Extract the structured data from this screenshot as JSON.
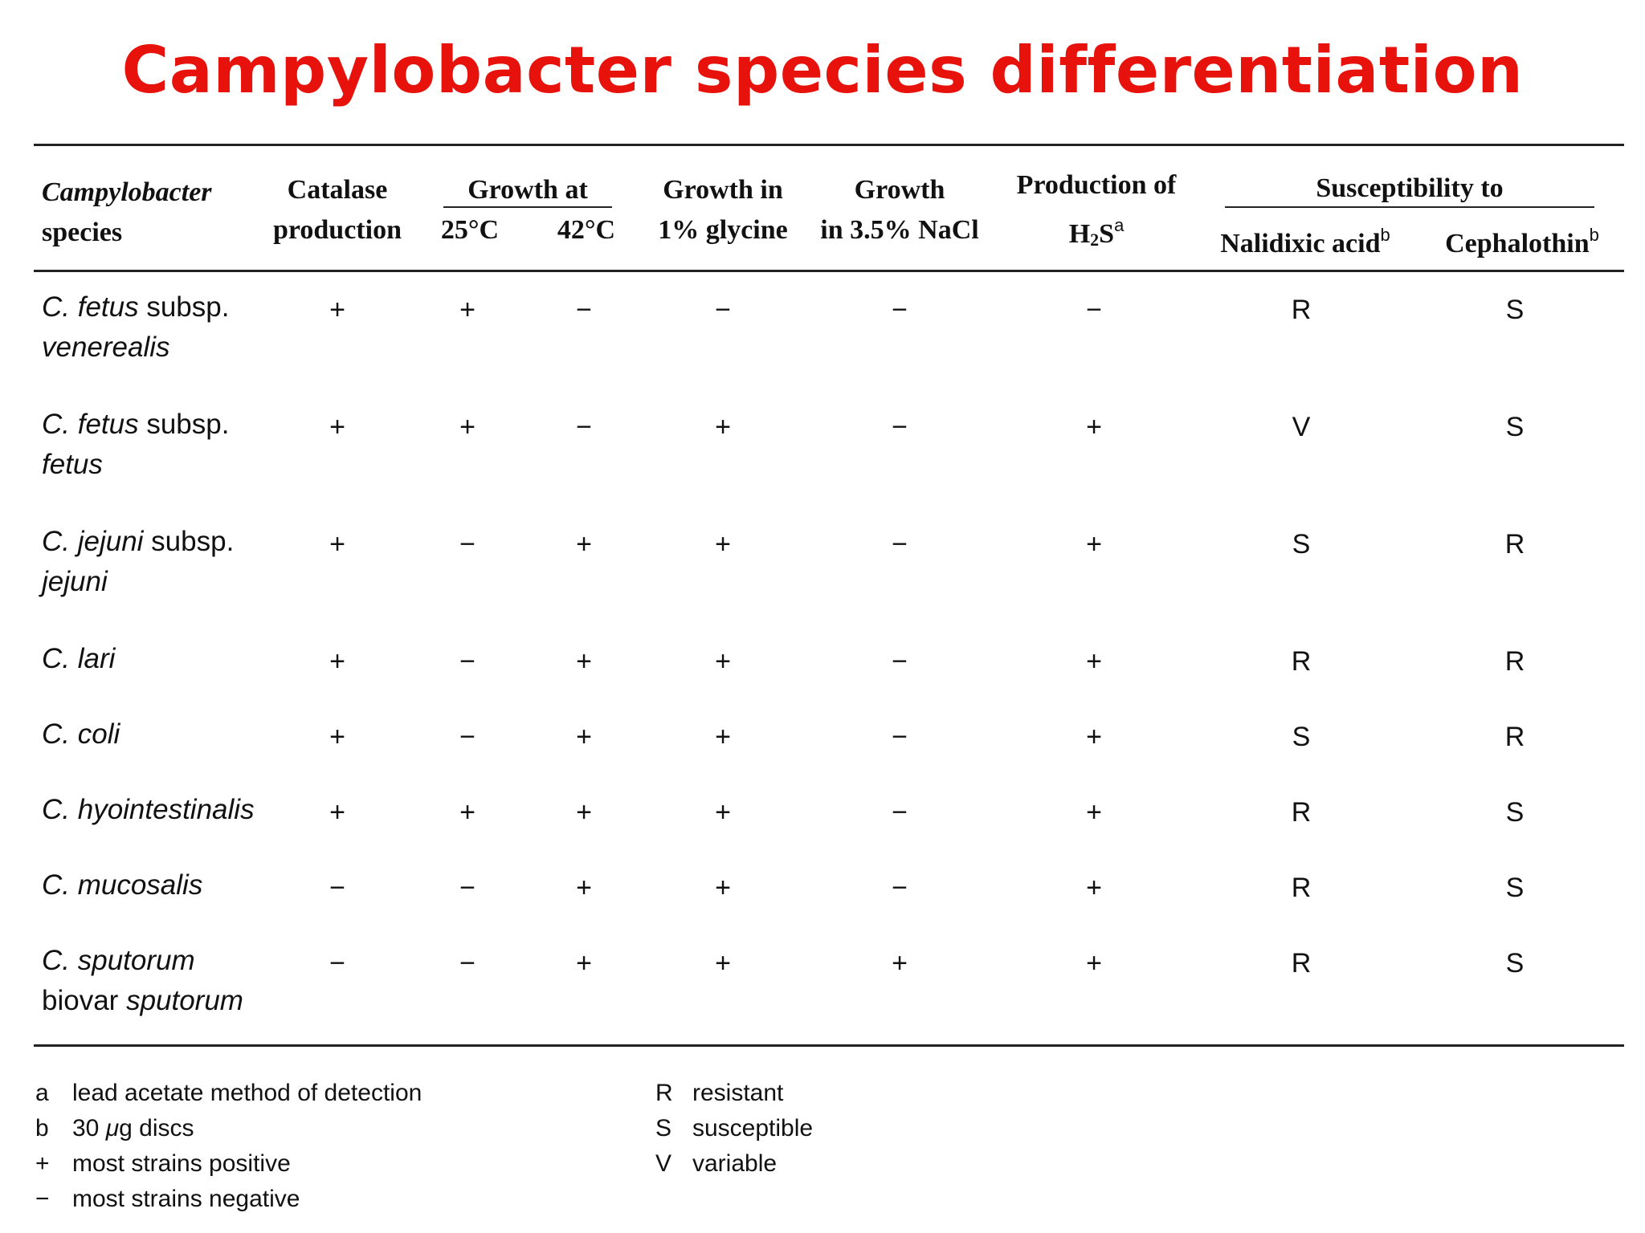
{
  "title": "Campylobacter species differentiation",
  "headers": {
    "species": [
      "Campylobacter",
      "species"
    ],
    "catalase": [
      "Catalase",
      "production"
    ],
    "growth_at": "Growth at",
    "t25": "25°C",
    "t42": "42°C",
    "glycine": [
      "Growth in",
      "1% glycine"
    ],
    "nacl": [
      "Growth",
      "in 3.5% NaCl"
    ],
    "h2s_line1": "Production of",
    "h2s_h": "H",
    "h2s_sub": "2",
    "h2s_s": "S",
    "h2s_sup": "a",
    "susceptibility": "Susceptibility to",
    "nalidixic": "Nalidixic acid",
    "nalidixic_sup": "b",
    "cephalothin": "Cephalothin",
    "cephalothin_sup": "b"
  },
  "rows": [
    {
      "species_italic": "C. fetus",
      "species_rest": " subsp.",
      "line2": "venerealis",
      "line2_italic": true,
      "values": [
        "+",
        "+",
        "−",
        "−",
        "−",
        "−",
        "R",
        "S"
      ]
    },
    {
      "species_italic": "C. fetus",
      "species_rest": " subsp.",
      "line2": "fetus",
      "line2_italic": true,
      "values": [
        "+",
        "+",
        "−",
        "+",
        "−",
        "+",
        "V",
        "S"
      ]
    },
    {
      "species_italic": "C. jejuni",
      "species_rest": " subsp.",
      "line2": "jejuni",
      "line2_italic": true,
      "values": [
        "+",
        "−",
        "+",
        "+",
        "−",
        "+",
        "S",
        "R"
      ]
    },
    {
      "species_italic": "C. lari",
      "species_rest": "",
      "line2": "",
      "line2_italic": true,
      "values": [
        "+",
        "−",
        "+",
        "+",
        "−",
        "+",
        "R",
        "R"
      ]
    },
    {
      "species_italic": "C. coli",
      "species_rest": "",
      "line2": "",
      "line2_italic": true,
      "values": [
        "+",
        "−",
        "+",
        "+",
        "−",
        "+",
        "S",
        "R"
      ]
    },
    {
      "species_italic": "C. hyointestinalis",
      "species_rest": "",
      "line2": "",
      "line2_italic": true,
      "values": [
        "+",
        "+",
        "+",
        "+",
        "−",
        "+",
        "R",
        "S"
      ]
    },
    {
      "species_italic": "C. mucosalis",
      "species_rest": "",
      "line2": "",
      "line2_italic": true,
      "values": [
        "−",
        "−",
        "+",
        "+",
        "−",
        "+",
        "R",
        "S"
      ]
    },
    {
      "species_italic": "C. sputorum",
      "species_rest": "",
      "line2_prefix": "biovar ",
      "line2": "sputorum",
      "line2_italic": true,
      "values": [
        "−",
        "−",
        "+",
        "+",
        "+",
        "+",
        "R",
        "S"
      ]
    }
  ],
  "footnotes_left": [
    {
      "key": "a",
      "text": "lead acetate method of detection"
    },
    {
      "key": "b",
      "text_prefix": "30 ",
      "text_unit": "μ",
      "text_suffix": "g discs"
    },
    {
      "key": "+",
      "text": "most strains positive"
    },
    {
      "key": "−",
      "text": "most strains negative"
    }
  ],
  "footnotes_right": [
    {
      "key": "R",
      "text": "resistant"
    },
    {
      "key": "S",
      "text": "susceptible"
    },
    {
      "key": "V",
      "text": "variable"
    }
  ],
  "colors": {
    "title": "#e8120c",
    "text": "#111111",
    "rules": "#222222"
  }
}
